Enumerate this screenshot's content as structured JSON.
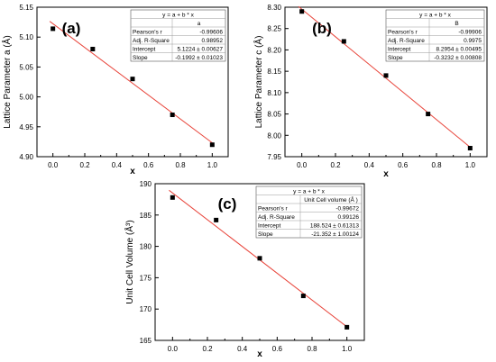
{
  "chart_data": [
    {
      "type": "scatter",
      "panel_label": "(a)",
      "xlabel": "x",
      "ylabel": "Lattice Parameter a (Å)",
      "xlim": [
        -0.1,
        1.1
      ],
      "ylim": [
        4.9,
        5.15
      ],
      "xticks": [
        "0.0",
        "0.2",
        "0.4",
        "0.6",
        "0.8",
        "1.0"
      ],
      "yticks": [
        "4.90",
        "4.95",
        "5.00",
        "5.05",
        "5.10",
        "5.15"
      ],
      "x": [
        0,
        0.25,
        0.5,
        0.75,
        1.0
      ],
      "y": [
        5.114,
        5.08,
        5.03,
        4.97,
        4.92
      ],
      "fit": {
        "intercept": 5.1224,
        "slope": -0.1992
      },
      "stats": {
        "title": "y = a + b * x",
        "column": "a",
        "rows": [
          {
            "label": "Pearson's r",
            "value": "-0.99606"
          },
          {
            "label": "Adj. R-Square",
            "value": "0.98952"
          },
          {
            "label": "Intercept",
            "value": "5.1224 ± 0.00627"
          },
          {
            "label": "Slope",
            "value": "-0.1992 ± 0.01023"
          }
        ]
      }
    },
    {
      "type": "scatter",
      "panel_label": "(b)",
      "xlabel": "x",
      "ylabel": "Lattice Parameter c (Å)",
      "xlim": [
        -0.1,
        1.1
      ],
      "ylim": [
        7.95,
        8.3
      ],
      "xticks": [
        "0.0",
        "0.2",
        "0.4",
        "0.6",
        "0.8",
        "1.0"
      ],
      "yticks": [
        "7.95",
        "8.00",
        "8.05",
        "8.10",
        "8.15",
        "8.20",
        "8.25",
        "8.30"
      ],
      "x": [
        0,
        0.25,
        0.5,
        0.75,
        1.0
      ],
      "y": [
        8.29,
        8.22,
        8.14,
        8.05,
        7.97
      ],
      "fit": {
        "intercept": 8.2954,
        "slope": -0.3232
      },
      "stats": {
        "title": "y = a + b * x",
        "column": "B",
        "rows": [
          {
            "label": "Pearson's r",
            "value": "-0.99906"
          },
          {
            "label": "Adj. R-Square",
            "value": "0.9975"
          },
          {
            "label": "Intercept",
            "value": "8.2954 ± 0.00495"
          },
          {
            "label": "Slope",
            "value": "-0.3232 ± 0.00808"
          }
        ]
      }
    },
    {
      "type": "scatter",
      "panel_label": "(c)",
      "xlabel": "x",
      "ylabel": "Unit Cell Volume (Å³)",
      "xlim": [
        -0.1,
        1.1
      ],
      "ylim": [
        165,
        190
      ],
      "xticks": [
        "0.0",
        "0.2",
        "0.4",
        "0.6",
        "0.8",
        "1.0"
      ],
      "yticks": [
        "165",
        "170",
        "175",
        "180",
        "185",
        "190"
      ],
      "x": [
        0,
        0.25,
        0.5,
        0.75,
        1.0
      ],
      "y": [
        187.8,
        184.2,
        178.1,
        172.1,
        167.1
      ],
      "fit": {
        "intercept": 188.524,
        "slope": -21.352
      },
      "stats": {
        "title": "y = a + b * x",
        "column": "Unit Cell volume (Å )",
        "rows": [
          {
            "label": "Pearson's r",
            "value": "-0.99672"
          },
          {
            "label": "Adj. R-Square",
            "value": "0.99126"
          },
          {
            "label": "Intercept",
            "value": "188.524 ± 0.61313"
          },
          {
            "label": "Slope",
            "value": "-21.352 ± 1.00124"
          }
        ]
      }
    }
  ],
  "colors": {
    "points": "#000000",
    "fit_line": "#e8443a",
    "axes": "#000000"
  }
}
